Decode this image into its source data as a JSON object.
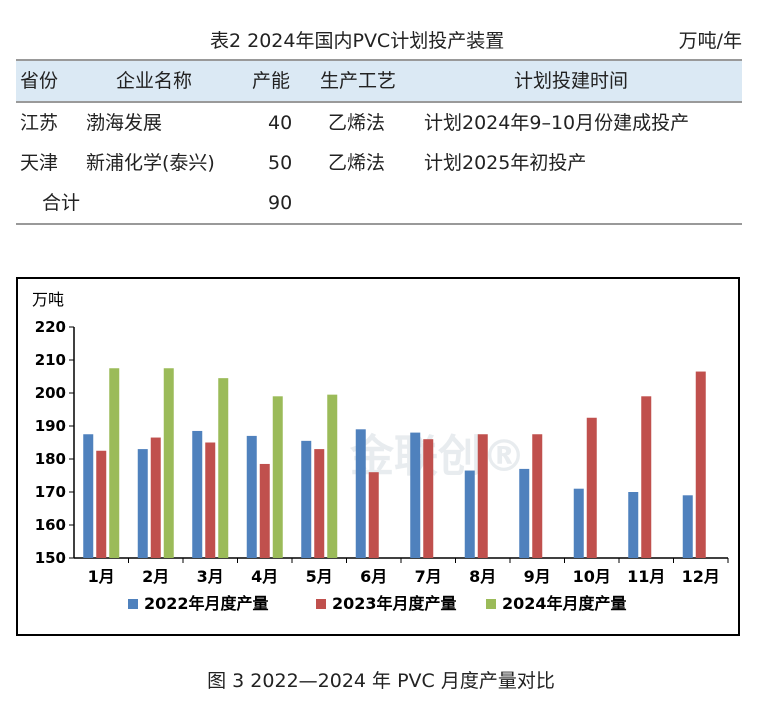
{
  "table": {
    "caption": "表2  2024年国内PVC计划投产装置",
    "unit": "万吨/年",
    "headers": [
      "省份",
      "企业名称",
      "产能",
      "生产工艺",
      "计划投建时间"
    ],
    "rows": [
      [
        "江苏",
        "渤海发展",
        "40",
        "乙烯法",
        "计划2024年9–10月份建成投产"
      ],
      [
        "天津",
        "新浦化学(泰兴)",
        "50",
        "乙烯法",
        "计划2025年初投产"
      ]
    ],
    "total": {
      "label": "合计",
      "value": "90"
    }
  },
  "chart_data": {
    "type": "bar",
    "ylabel": "万吨",
    "ylim": [
      150,
      220
    ],
    "yticks": [
      150,
      160,
      170,
      180,
      190,
      200,
      210,
      220
    ],
    "categories": [
      "1月",
      "2月",
      "3月",
      "4月",
      "5月",
      "6月",
      "7月",
      "8月",
      "9月",
      "10月",
      "11月",
      "12月"
    ],
    "series": [
      {
        "name": "2022年月度产量",
        "color": "#4f81bd",
        "values": [
          187.5,
          183,
          188.5,
          187,
          185.5,
          189,
          188,
          176.5,
          177,
          171,
          170,
          169
        ]
      },
      {
        "name": "2023年月度产量",
        "color": "#c0504d",
        "values": [
          182.5,
          186.5,
          185,
          178.5,
          183,
          176,
          186,
          187.5,
          187.5,
          192.5,
          199,
          206.5
        ]
      },
      {
        "name": "2024年月度产量",
        "color": "#9bbb59",
        "values": [
          207.5,
          207.5,
          204.5,
          199,
          199.5,
          null,
          null,
          null,
          null,
          null,
          null,
          null
        ]
      }
    ],
    "legend_position": "bottom",
    "grid": false,
    "watermark": "金联创®"
  },
  "figure_caption": "图 3  2022—2024 年 PVC 月度产量对比"
}
